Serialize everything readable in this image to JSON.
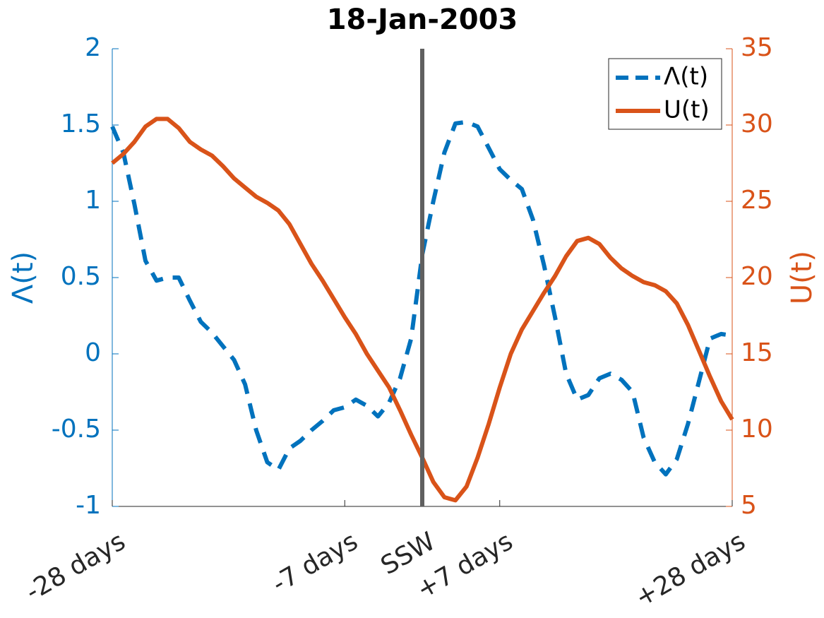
{
  "chart_data": {
    "type": "line",
    "title": "18-Jan-2003",
    "x": [
      -28,
      -27,
      -26,
      -25,
      -24,
      -23,
      -22,
      -21,
      -20,
      -19,
      -18,
      -17,
      -16,
      -15,
      -14,
      -13,
      -12,
      -11,
      -10,
      -9,
      -8,
      -7,
      -6,
      -5,
      -4,
      -3,
      -2,
      -1,
      0,
      1,
      2,
      3,
      4,
      5,
      6,
      7,
      8,
      9,
      10,
      11,
      12,
      13,
      14,
      15,
      16,
      17,
      18,
      19,
      20,
      21,
      22,
      23,
      24,
      25,
      26,
      27,
      28
    ],
    "series": [
      {
        "name": "Λ(t)",
        "color": "#0072BD",
        "dashed": true,
        "axis": "y",
        "values": [
          1.49,
          1.32,
          0.98,
          0.61,
          0.48,
          0.5,
          0.5,
          0.35,
          0.21,
          0.14,
          0.05,
          -0.04,
          -0.2,
          -0.5,
          -0.71,
          -0.76,
          -0.62,
          -0.57,
          -0.5,
          -0.44,
          -0.37,
          -0.35,
          -0.3,
          -0.34,
          -0.41,
          -0.32,
          -0.16,
          0.1,
          0.65,
          1.0,
          1.32,
          1.51,
          1.52,
          1.49,
          1.35,
          1.21,
          1.14,
          1.08,
          0.88,
          0.58,
          0.24,
          -0.13,
          -0.3,
          -0.27,
          -0.16,
          -0.13,
          -0.17,
          -0.25,
          -0.55,
          -0.71,
          -0.79,
          -0.69,
          -0.46,
          -0.18,
          0.1,
          0.13,
          0.12
        ]
      },
      {
        "name": "U(t)",
        "color": "#D95319",
        "dashed": false,
        "axis": "y2",
        "values": [
          27.5,
          28.1,
          28.9,
          29.9,
          30.4,
          30.4,
          29.8,
          28.9,
          28.4,
          28.0,
          27.3,
          26.5,
          25.9,
          25.3,
          24.9,
          24.4,
          23.5,
          22.2,
          20.9,
          19.8,
          18.6,
          17.4,
          16.3,
          15.0,
          13.9,
          12.8,
          11.3,
          9.7,
          8.2,
          6.6,
          5.6,
          5.4,
          6.3,
          8.2,
          10.4,
          12.8,
          15.0,
          16.6,
          17.8,
          19.0,
          20.1,
          21.4,
          22.4,
          22.6,
          22.2,
          21.3,
          20.6,
          20.1,
          19.7,
          19.5,
          19.1,
          18.3,
          16.9,
          15.2,
          13.5,
          11.9,
          10.7
        ]
      }
    ],
    "xlim": [
      -28,
      28
    ],
    "xticks": [
      {
        "value": -28,
        "label": "-28 days"
      },
      {
        "value": -7,
        "label": "-7 days"
      },
      {
        "value": 0,
        "label": "SSW"
      },
      {
        "value": 7,
        "label": "+7 days"
      },
      {
        "value": 28,
        "label": "+28 days"
      }
    ],
    "ylim": [
      -1,
      2
    ],
    "yticks": [
      -1,
      -0.5,
      0,
      0.5,
      1,
      1.5,
      2
    ],
    "ylabel": "Λ(t)",
    "ycolor": "#0072BD",
    "y2lim": [
      5,
      35
    ],
    "y2ticks": [
      5,
      10,
      15,
      20,
      25,
      30,
      35
    ],
    "y2label": "U(t)",
    "y2color": "#D95319",
    "vline": 0,
    "vline_color": "#606060",
    "legend": "northeast",
    "grid": false
  }
}
